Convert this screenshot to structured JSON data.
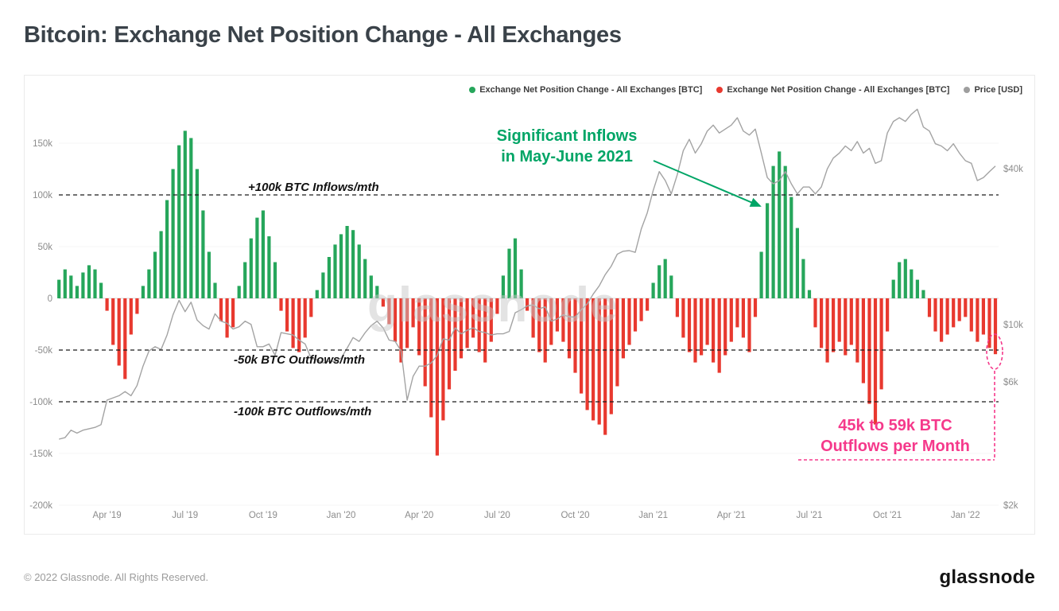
{
  "page": {
    "title": "Bitcoin: Exchange Net Position Change - All Exchanges",
    "watermark": "glassnode",
    "footer_copyright": "© 2022 Glassnode. All Rights Reserved.",
    "brand_logo": "glassnode"
  },
  "legend": {
    "items": [
      {
        "label": "Exchange Net Position Change - All Exchanges [BTC]",
        "color": "#26a65b"
      },
      {
        "label": "Exchange Net Position Change - All Exchanges [BTC]",
        "color": "#e8392f"
      },
      {
        "label": "Price [USD]",
        "color": "#9e9e9e"
      }
    ]
  },
  "annotations": {
    "threshold_lines": [
      {
        "label": "+100k BTC Inflows/mth",
        "value_k": 100
      },
      {
        "label": "-50k BTC Outflows/mth",
        "value_k": -50
      },
      {
        "label": "-100k BTC Outflows/mth",
        "value_k": -100
      }
    ],
    "significant_inflows": {
      "line1": "Significant Inflows",
      "line2": "in May-June 2021",
      "color": "#00a566"
    },
    "recent_outflows": {
      "line1": "45k to 59k BTC",
      "line2": "Outflows per Month",
      "color": "#f5398b"
    }
  },
  "chart_data": {
    "type": "bar",
    "title": "Bitcoin: Exchange Net Position Change - All Exchanges",
    "x_unit": "weekly samples, Feb 2019 - Feb 2022",
    "legend_position": "top-right",
    "grid": "minimal",
    "y_right_scale": "log",
    "colors": {
      "positive": "#26a65b",
      "negative": "#e8392f",
      "price": "#a3a3a3"
    },
    "x_ticks": [
      {
        "label": "Apr '19",
        "week": 8
      },
      {
        "label": "Jul '19",
        "week": 21
      },
      {
        "label": "Oct '19",
        "week": 34
      },
      {
        "label": "Jan '20",
        "week": 47
      },
      {
        "label": "Apr '20",
        "week": 60
      },
      {
        "label": "Jul '20",
        "week": 73
      },
      {
        "label": "Oct '20",
        "week": 86
      },
      {
        "label": "Jan '21",
        "week": 99
      },
      {
        "label": "Apr '21",
        "week": 112
      },
      {
        "label": "Jul '21",
        "week": 125
      },
      {
        "label": "Oct '21",
        "week": 138
      },
      {
        "label": "Jan '22",
        "week": 151
      }
    ],
    "y_left_ticks": [
      {
        "label": "150k",
        "value": 150
      },
      {
        "label": "100k",
        "value": 100
      },
      {
        "label": "50k",
        "value": 50
      },
      {
        "label": "0",
        "value": 0
      },
      {
        "label": "-50k",
        "value": -50
      },
      {
        "label": "-100k",
        "value": -100
      },
      {
        "label": "-150k",
        "value": -150
      },
      {
        "label": "-200k",
        "value": -200
      }
    ],
    "y_right_ticks": [
      {
        "label": "$40k",
        "value": 40
      },
      {
        "label": "$10k",
        "value": 10
      },
      {
        "label": "$6k",
        "value": 6
      },
      {
        "label": "$2k",
        "value": 2
      }
    ],
    "series": [
      {
        "name": "Exchange Net Position Change - All Exchanges [BTC]",
        "type": "bar",
        "unit": "thousand BTC per month",
        "values": [
          18,
          28,
          22,
          12,
          25,
          32,
          28,
          15,
          -12,
          -45,
          -65,
          -78,
          -35,
          -15,
          12,
          28,
          45,
          65,
          95,
          125,
          148,
          162,
          155,
          125,
          85,
          45,
          15,
          -22,
          -38,
          -28,
          12,
          35,
          58,
          78,
          85,
          60,
          35,
          -12,
          -32,
          -48,
          -52,
          -38,
          -18,
          8,
          25,
          40,
          52,
          62,
          70,
          66,
          52,
          38,
          22,
          12,
          -8,
          -25,
          -42,
          -62,
          -48,
          -28,
          -55,
          -85,
          -115,
          -152,
          -118,
          -88,
          -70,
          -58,
          -48,
          -38,
          -52,
          -62,
          -42,
          -15,
          22,
          48,
          58,
          28,
          -12,
          -38,
          -52,
          -62,
          -45,
          -32,
          -42,
          -58,
          -72,
          -92,
          -108,
          -118,
          -122,
          -132,
          -112,
          -85,
          -58,
          -45,
          -32,
          -22,
          -12,
          15,
          32,
          38,
          22,
          -18,
          -38,
          -52,
          -62,
          -55,
          -45,
          -62,
          -72,
          -55,
          -42,
          -28,
          -38,
          -52,
          -18,
          45,
          92,
          128,
          142,
          128,
          98,
          68,
          38,
          8,
          -28,
          -48,
          -62,
          -52,
          -42,
          -55,
          -45,
          -62,
          -82,
          -102,
          -122,
          -88,
          -32,
          18,
          35,
          38,
          28,
          18,
          8,
          -18,
          -32,
          -42,
          -35,
          -28,
          -22,
          -18,
          -32,
          -42,
          -35,
          -48,
          -54
        ]
      },
      {
        "name": "Price [USD]",
        "type": "line",
        "unit": "thousand USD",
        "values": [
          3.6,
          3.65,
          3.9,
          3.8,
          3.9,
          3.95,
          4.0,
          4.1,
          5.1,
          5.2,
          5.3,
          5.5,
          5.3,
          5.8,
          6.9,
          7.9,
          8.2,
          8.0,
          9.1,
          10.9,
          12.4,
          11.2,
          12.2,
          10.4,
          9.9,
          9.6,
          11.0,
          10.3,
          10.1,
          9.6,
          9.8,
          10.3,
          10.0,
          8.2,
          8.2,
          8.4,
          7.6,
          9.3,
          9.2,
          9.1,
          8.7,
          8.4,
          7.4,
          7.3,
          7.1,
          7.2,
          7.2,
          7.4,
          8.1,
          8.9,
          8.6,
          9.3,
          9.9,
          10.3,
          9.7,
          8.7,
          8.6,
          7.9,
          5.1,
          6.3,
          6.9,
          6.9,
          7.1,
          7.6,
          8.8,
          8.7,
          9.7,
          9.2,
          9.5,
          9.7,
          9.4,
          9.3,
          9.1,
          9.2,
          9.2,
          9.4,
          11.1,
          11.4,
          11.8,
          11.9,
          11.5,
          11.7,
          10.3,
          10.5,
          10.9,
          10.7,
          10.7,
          11.4,
          12.0,
          13.1,
          14.1,
          15.6,
          16.8,
          18.7,
          19.2,
          19.3,
          19.0,
          23.4,
          27.0,
          33,
          39,
          36,
          32,
          38,
          47,
          52,
          46,
          50,
          56,
          59,
          55,
          57,
          59,
          63,
          56,
          54,
          57,
          46,
          37,
          35,
          36,
          39,
          35,
          32,
          34,
          34,
          32,
          34,
          40,
          44,
          46,
          49,
          47,
          51,
          46,
          48,
          42,
          43,
          55,
          61,
          63,
          61,
          65,
          68,
          58,
          56,
          50,
          49,
          47,
          50,
          46,
          43,
          42,
          36,
          37,
          39,
          41
        ]
      }
    ]
  }
}
